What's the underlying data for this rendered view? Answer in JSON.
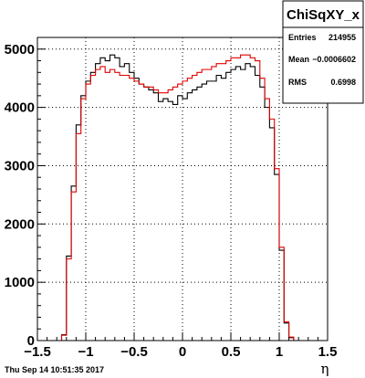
{
  "footer": {
    "timestamp": "Thu Sep 14 10:51:35 2017"
  },
  "stats_box": {
    "title": "ChiSqXY_x",
    "rows": [
      {
        "label": "Entries",
        "value": "214955"
      },
      {
        "label": "Mean",
        "value": "−0.0006602"
      },
      {
        "label": "RMS",
        "value": "0.6998"
      }
    ]
  },
  "chart_data": {
    "type": "histogram",
    "xlabel": "η",
    "ylabel": "",
    "xlim": [
      -1.5,
      1.5
    ],
    "ylim": [
      0,
      5200
    ],
    "grid": true,
    "x_ticks": [
      {
        "value": -1.5,
        "label": "−1.5"
      },
      {
        "value": -1.0,
        "label": "−1"
      },
      {
        "value": -0.5,
        "label": "−0.5"
      },
      {
        "value": 0.0,
        "label": "0"
      },
      {
        "value": 0.5,
        "label": "0.5"
      },
      {
        "value": 1.0,
        "label": "1"
      },
      {
        "value": 1.5,
        "label": "1.5"
      }
    ],
    "y_ticks": [
      {
        "value": 0,
        "label": "0"
      },
      {
        "value": 1000,
        "label": "1000"
      },
      {
        "value": 2000,
        "label": "2000"
      },
      {
        "value": 3000,
        "label": "3000"
      },
      {
        "value": 4000,
        "label": "4000"
      },
      {
        "value": 5000,
        "label": "5000"
      }
    ],
    "bin_edges_start": -1.5,
    "bin_width": 0.05,
    "series": [
      {
        "color": "#000000",
        "values": [
          0,
          0,
          0,
          0,
          0,
          100,
          1450,
          2650,
          3700,
          4200,
          4450,
          4600,
          4750,
          4850,
          4800,
          4900,
          4850,
          4700,
          4750,
          4600,
          4500,
          4400,
          4350,
          4300,
          4250,
          4100,
          4150,
          4100,
          4050,
          4200,
          4150,
          4250,
          4300,
          4350,
          4400,
          4450,
          4450,
          4550,
          4500,
          4600,
          4650,
          4700,
          4650,
          4750,
          4700,
          4550,
          4350,
          4000,
          3650,
          2850,
          1550,
          300,
          50,
          0,
          0,
          0,
          0,
          0,
          0,
          0
        ]
      },
      {
        "color": "#e00000",
        "values": [
          0,
          0,
          0,
          0,
          0,
          90,
          1400,
          2550,
          3550,
          4150,
          4400,
          4550,
          4650,
          4700,
          4600,
          4650,
          4600,
          4550,
          4550,
          4500,
          4450,
          4400,
          4350,
          4350,
          4300,
          4250,
          4250,
          4300,
          4350,
          4400,
          4450,
          4500,
          4550,
          4600,
          4650,
          4650,
          4700,
          4750,
          4750,
          4800,
          4850,
          4850,
          4900,
          4900,
          4850,
          4800,
          4500,
          4150,
          3800,
          2950,
          1600,
          320,
          60,
          0,
          0,
          0,
          0,
          0,
          0,
          0
        ]
      }
    ]
  }
}
